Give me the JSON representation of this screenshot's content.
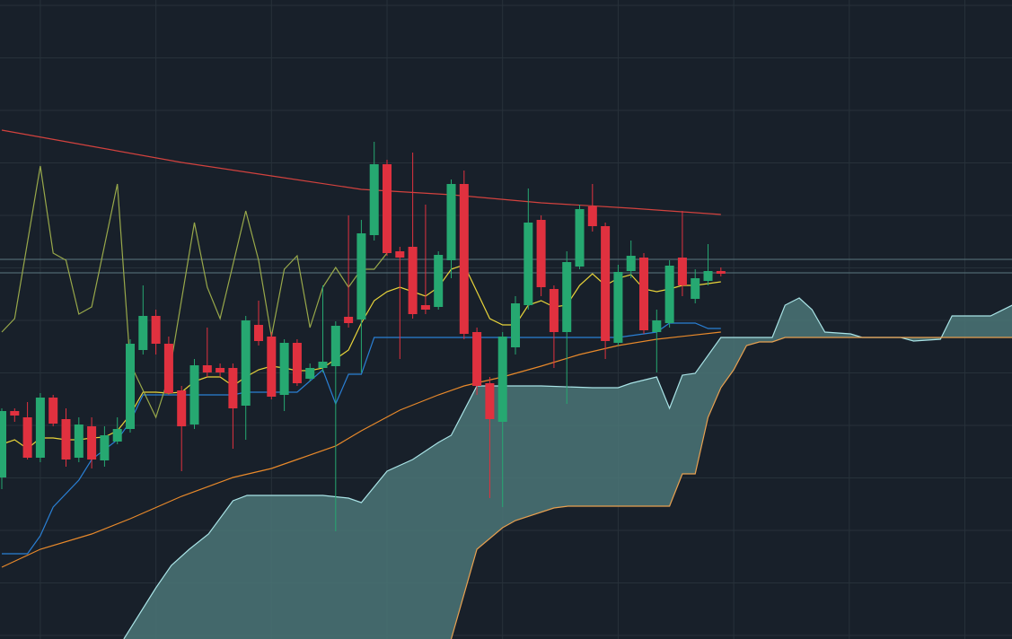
{
  "chart_data": {
    "type": "candlestick",
    "background": "#18202a",
    "grid": true,
    "grid_color": "#27313a",
    "xlim": [
      -0.14,
      78.67
    ],
    "ylim": [
      0,
      712
    ],
    "xticks": [
      3,
      12,
      21,
      30,
      39,
      48,
      57,
      66,
      75
    ],
    "yticks": [
      706,
      647.5,
      589,
      530.5,
      472,
      413.5,
      355,
      296.5,
      238,
      179.5,
      121,
      62.5,
      4
    ],
    "up_color": "#26a871",
    "down_color": "#e0313f",
    "x": [
      0,
      1,
      2,
      3,
      4,
      5,
      6,
      7,
      8,
      9,
      10,
      11,
      12,
      13,
      14,
      15,
      16,
      17,
      18,
      19,
      20,
      21,
      22,
      23,
      24,
      25,
      26,
      27,
      28,
      29,
      30,
      31,
      32,
      33,
      34,
      35,
      36,
      37,
      38,
      39,
      40,
      41,
      42,
      43,
      44,
      45,
      46,
      47,
      48,
      49,
      50,
      51,
      52,
      53,
      54,
      55,
      56
    ],
    "open": [
      180,
      254,
      247,
      202,
      269,
      245,
      202,
      237,
      199,
      220,
      234,
      322,
      360,
      329,
      277,
      239,
      305,
      302,
      302,
      260,
      350,
      337,
      272,
      330,
      290,
      302,
      304,
      359,
      356,
      450,
      529,
      432,
      437,
      372,
      370,
      422,
      507,
      342,
      285,
      242,
      325,
      372,
      467,
      390,
      342,
      415,
      482,
      460,
      330,
      410,
      425,
      342,
      352,
      425,
      379,
      399,
      410
    ],
    "high": [
      257,
      257,
      264,
      274,
      272,
      257,
      247,
      247,
      237,
      247,
      334,
      394,
      367,
      337,
      282,
      312,
      347,
      307,
      307,
      360,
      377,
      342,
      334,
      334,
      307,
      394,
      354,
      472,
      467,
      554,
      534,
      437,
      542,
      484,
      432,
      512,
      522,
      347,
      292,
      342,
      382,
      502,
      472,
      394,
      432,
      484,
      507,
      464,
      417,
      444,
      430,
      367,
      422,
      477,
      412,
      440,
      414
    ],
    "low": [
      167,
      242,
      200,
      197,
      237,
      192,
      197,
      190,
      192,
      217,
      230,
      317,
      317,
      272,
      187,
      234,
      292,
      292,
      212,
      222,
      327,
      267,
      254,
      282,
      287,
      297,
      120,
      347,
      297,
      444,
      427,
      312,
      357,
      362,
      367,
      402,
      334,
      272,
      157,
      147,
      317,
      367,
      382,
      302,
      262,
      412,
      454,
      312,
      327,
      402,
      340,
      297,
      347,
      382,
      374,
      394,
      404
    ],
    "close": [
      254,
      249,
      202,
      269,
      240,
      200,
      239,
      200,
      227,
      234,
      329,
      360,
      329,
      274,
      237,
      305,
      297,
      297,
      257,
      355,
      332,
      270,
      330,
      285,
      302,
      309,
      349,
      352,
      452,
      529,
      430,
      425,
      362,
      367,
      428,
      507,
      340,
      282,
      245,
      337,
      374,
      464,
      392,
      342,
      420,
      479,
      460,
      332,
      409,
      427,
      344,
      355,
      416,
      394,
      402,
      410,
      407
    ],
    "price_lines": {
      "color": "#5b7880",
      "values": [
        423,
        408
      ]
    },
    "lines": [
      {
        "color": "#d2423e",
        "x": [
          0,
          7,
          14,
          21,
          28,
          35,
          42,
          49,
          56
        ],
        "values": [
          567,
          549,
          531,
          516,
          501,
          495,
          486,
          480,
          473
        ]
      },
      {
        "color": "#e8d43a",
        "x": [
          0,
          1,
          2,
          3,
          4,
          5,
          6,
          7,
          8,
          9,
          10,
          11,
          12,
          13,
          14,
          15,
          16,
          17,
          18,
          19,
          20,
          21,
          22,
          23,
          24,
          25,
          26,
          27,
          28,
          29,
          30,
          31,
          32,
          33,
          34,
          35,
          36,
          37,
          38,
          39,
          40,
          41,
          42,
          43,
          44,
          45,
          46,
          47,
          48,
          49,
          50,
          51,
          52,
          53,
          54,
          55,
          56
        ],
        "values": [
          217,
          222,
          212,
          224,
          224,
          222,
          222,
          224,
          225,
          232,
          250,
          275,
          275,
          274,
          275,
          287,
          292,
          292,
          282,
          292,
          300,
          304,
          302,
          299,
          299,
          302,
          312,
          322,
          352,
          377,
          387,
          392,
          387,
          382,
          392,
          412,
          417,
          387,
          357,
          350,
          350,
          372,
          377,
          370,
          372,
          394,
          407,
          394,
          402,
          406,
          390,
          387,
          390,
          394,
          394,
          396,
          398
        ]
      },
      {
        "color": "#e8892a",
        "x": [
          0,
          3,
          7,
          10,
          14,
          18,
          21,
          23,
          26,
          28,
          31,
          34,
          36,
          39,
          42,
          45,
          48,
          51,
          56
        ],
        "values": [
          80,
          100,
          117,
          134,
          159,
          180,
          190,
          200,
          215,
          232,
          255,
          272,
          282,
          292,
          304,
          317,
          327,
          334,
          342
        ]
      },
      {
        "color": "#2a7fd4",
        "x": [
          0,
          2,
          3,
          4,
          6,
          7,
          9,
          10,
          11,
          18,
          19,
          23,
          25,
          26,
          27,
          28,
          29,
          48,
          51,
          52,
          54,
          55,
          56
        ],
        "values": [
          95,
          95,
          115,
          147,
          177,
          200,
          222,
          242,
          272,
          272,
          275,
          275,
          300,
          262,
          295,
          295,
          336,
          336,
          342,
          352,
          352,
          346,
          346
        ]
      },
      {
        "color": "#98a84a",
        "x": [
          0,
          1,
          3,
          4,
          5,
          6,
          7,
          9,
          10,
          12,
          13,
          15,
          16,
          17,
          19,
          20,
          21,
          22,
          23,
          24,
          25,
          26,
          27,
          28,
          29,
          30
        ],
        "values": [
          342,
          357,
          527,
          430,
          422,
          362,
          370,
          507,
          307,
          247,
          292,
          464,
          392,
          357,
          477,
          422,
          337,
          412,
          427,
          347,
          392,
          414,
          392,
          412,
          412,
          430
        ]
      }
    ],
    "cloud": {
      "fill": "#4b7677",
      "span_a": {
        "color": "#a9e3e6",
        "x": [
          9.5,
          12,
          13.2,
          14.6,
          16.1,
          18,
          19.1,
          25,
          27,
          28,
          30,
          32,
          34,
          35,
          37,
          39,
          42,
          46,
          48,
          49,
          51,
          52,
          53,
          54,
          56,
          57,
          60,
          61,
          62.1,
          63.1,
          64.1,
          66.1,
          67,
          70,
          71,
          73.1,
          74,
          77,
          78.7
        ],
        "values": [
          0,
          57,
          82,
          100,
          117,
          154,
          160,
          160,
          157,
          152,
          187,
          200,
          219,
          227,
          282,
          282,
          282,
          280,
          280,
          285,
          292,
          257,
          294,
          296,
          336,
          336,
          336,
          372,
          380,
          367,
          342,
          340,
          336,
          336,
          332,
          334,
          360,
          360,
          372
        ]
      },
      "span_b": {
        "color": "#e8a050",
        "x": [
          35,
          37,
          39,
          40,
          43,
          44.1,
          52,
          53,
          54,
          55,
          56,
          57,
          58,
          59,
          60,
          61,
          78.7
        ],
        "values": [
          0,
          100,
          124,
          132,
          146,
          148,
          148,
          184,
          184,
          247,
          280,
          300,
          327,
          331,
          331,
          336,
          336
        ]
      }
    }
  }
}
